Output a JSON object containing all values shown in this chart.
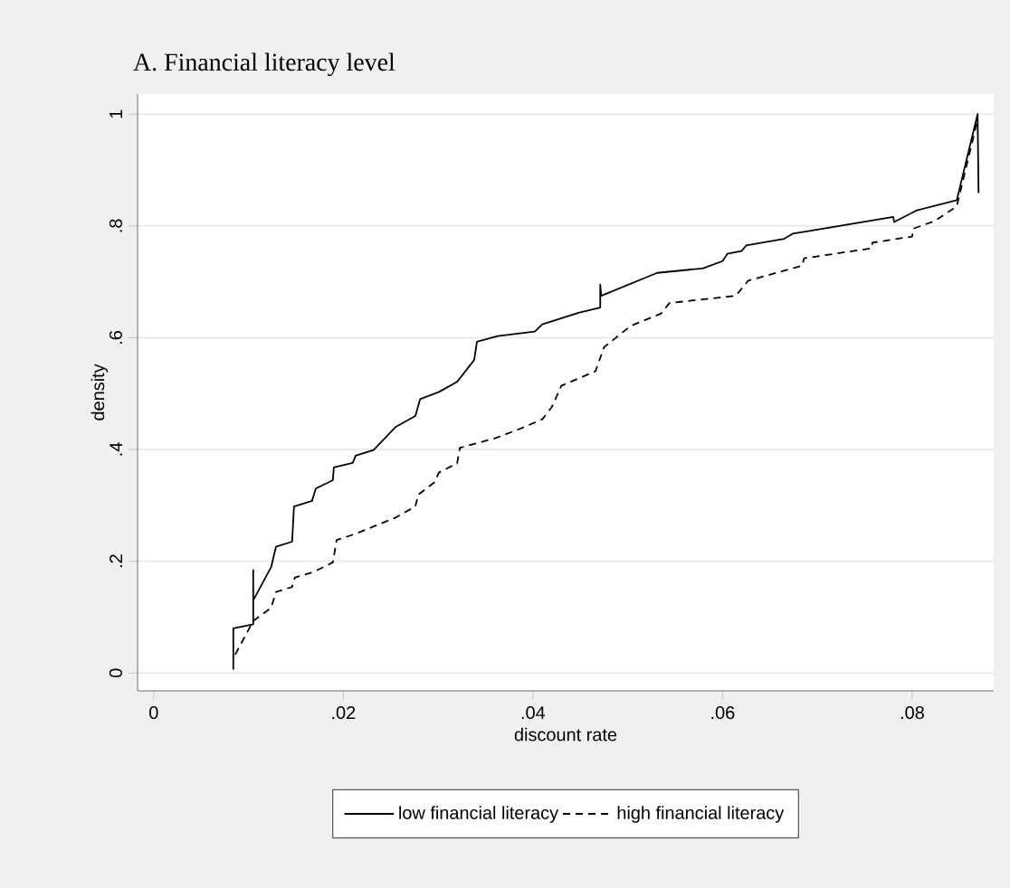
{
  "chart_data": {
    "type": "line",
    "title": "A. Financial literacy level",
    "xlabel": "discount rate",
    "ylabel": "density",
    "xlim": [
      -0.0017,
      0.0886
    ],
    "ylim": [
      -0.032,
      1.036
    ],
    "xticks": [
      0,
      {
        "value": 0.02,
        "label": ".02"
      },
      {
        "value": 0.04,
        "label": ".04"
      },
      {
        "value": 0.06,
        "label": ".06"
      },
      {
        "value": 0.08,
        "label": ".08"
      }
    ],
    "yticks": [
      0,
      {
        "value": 0.2,
        "label": ".2"
      },
      {
        "value": 0.4,
        "label": ".4"
      },
      {
        "value": 0.6,
        "label": ".6"
      },
      {
        "value": 0.8,
        "label": ".8"
      },
      1
    ],
    "grid": "y",
    "legend": "bottom",
    "marker": "none",
    "series": [
      {
        "name": "low financial literacy",
        "color": "#000000",
        "line_style": "solid",
        "x": [
          0.0084,
          0.0084,
          0.0105,
          0.0105,
          0.0105,
          0.0124,
          0.0129,
          0.0146,
          0.0148,
          0.0167,
          0.0171,
          0.0189,
          0.019,
          0.021,
          0.0213,
          0.0232,
          0.0255,
          0.0276,
          0.0281,
          0.0301,
          0.032,
          0.0338,
          0.0341,
          0.0363,
          0.0402,
          0.041,
          0.0449,
          0.0471,
          0.0471,
          0.0472,
          0.0531,
          0.0579,
          0.06,
          0.0605,
          0.062,
          0.0625,
          0.0665,
          0.0674,
          0.078,
          0.0781,
          0.0805,
          0.0847,
          0.0869,
          0.087
        ],
        "values": [
          0.006,
          0.08,
          0.087,
          0.184,
          0.13,
          0.19,
          0.226,
          0.235,
          0.298,
          0.308,
          0.33,
          0.345,
          0.368,
          0.376,
          0.389,
          0.399,
          0.44,
          0.46,
          0.49,
          0.503,
          0.521,
          0.56,
          0.593,
          0.603,
          0.611,
          0.624,
          0.645,
          0.654,
          0.695,
          0.675,
          0.716,
          0.724,
          0.737,
          0.75,
          0.755,
          0.765,
          0.777,
          0.786,
          0.816,
          0.807,
          0.828,
          0.846,
          1.0,
          0.859
        ]
      },
      {
        "name": "high financial literacy",
        "color": "#000000",
        "line_style": "dashed",
        "x": [
          0.0086,
          0.0105,
          0.0124,
          0.0129,
          0.0146,
          0.0149,
          0.0169,
          0.0189,
          0.0193,
          0.0213,
          0.0255,
          0.0276,
          0.0279,
          0.0296,
          0.0301,
          0.032,
          0.0323,
          0.036,
          0.0385,
          0.041,
          0.042,
          0.043,
          0.0466,
          0.0475,
          0.0503,
          0.0535,
          0.0544,
          0.0614,
          0.0627,
          0.0684,
          0.0686,
          0.0757,
          0.0758,
          0.08,
          0.0801,
          0.0824,
          0.0847,
          0.0869
        ],
        "values": [
          0.033,
          0.093,
          0.117,
          0.145,
          0.154,
          0.171,
          0.181,
          0.198,
          0.238,
          0.249,
          0.278,
          0.298,
          0.319,
          0.341,
          0.359,
          0.375,
          0.403,
          0.42,
          0.436,
          0.454,
          0.476,
          0.514,
          0.54,
          0.583,
          0.621,
          0.643,
          0.662,
          0.675,
          0.702,
          0.729,
          0.742,
          0.76,
          0.77,
          0.781,
          0.795,
          0.809,
          0.835,
          0.99
        ]
      }
    ]
  }
}
